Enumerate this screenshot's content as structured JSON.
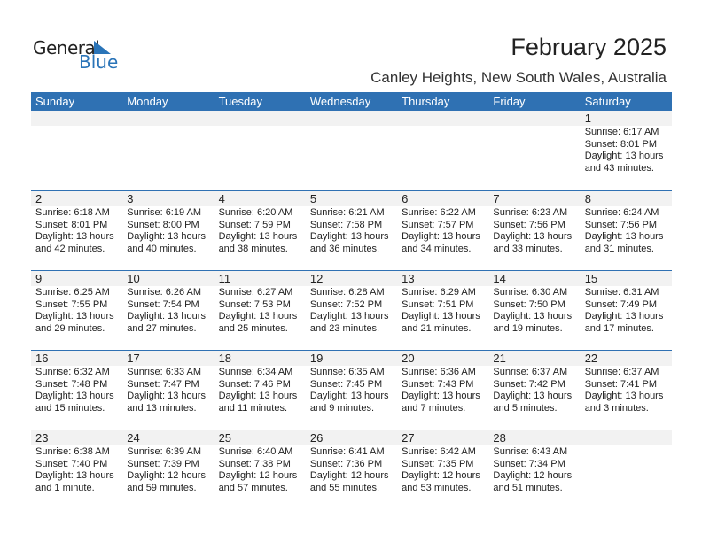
{
  "logo": {
    "word1": "General",
    "word2": "Blue"
  },
  "title": "February 2025",
  "location": "Canley Heights, New South Wales, Australia",
  "colors": {
    "header": "#2f71b3",
    "band": "#f2f2f2",
    "logo_blue": "#2a74b8"
  },
  "days": [
    "Sunday",
    "Monday",
    "Tuesday",
    "Wednesday",
    "Thursday",
    "Friday",
    "Saturday"
  ],
  "weeks": [
    [
      null,
      null,
      null,
      null,
      null,
      null,
      {
        "d": "1",
        "sr": "Sunrise: 6:17 AM",
        "ss": "Sunset: 8:01 PM",
        "dl": "Daylight: 13 hours",
        "m": "and 43 minutes."
      }
    ],
    [
      {
        "d": "2",
        "sr": "Sunrise: 6:18 AM",
        "ss": "Sunset: 8:01 PM",
        "dl": "Daylight: 13 hours",
        "m": "and 42 minutes."
      },
      {
        "d": "3",
        "sr": "Sunrise: 6:19 AM",
        "ss": "Sunset: 8:00 PM",
        "dl": "Daylight: 13 hours",
        "m": "and 40 minutes."
      },
      {
        "d": "4",
        "sr": "Sunrise: 6:20 AM",
        "ss": "Sunset: 7:59 PM",
        "dl": "Daylight: 13 hours",
        "m": "and 38 minutes."
      },
      {
        "d": "5",
        "sr": "Sunrise: 6:21 AM",
        "ss": "Sunset: 7:58 PM",
        "dl": "Daylight: 13 hours",
        "m": "and 36 minutes."
      },
      {
        "d": "6",
        "sr": "Sunrise: 6:22 AM",
        "ss": "Sunset: 7:57 PM",
        "dl": "Daylight: 13 hours",
        "m": "and 34 minutes."
      },
      {
        "d": "7",
        "sr": "Sunrise: 6:23 AM",
        "ss": "Sunset: 7:56 PM",
        "dl": "Daylight: 13 hours",
        "m": "and 33 minutes."
      },
      {
        "d": "8",
        "sr": "Sunrise: 6:24 AM",
        "ss": "Sunset: 7:56 PM",
        "dl": "Daylight: 13 hours",
        "m": "and 31 minutes."
      }
    ],
    [
      {
        "d": "9",
        "sr": "Sunrise: 6:25 AM",
        "ss": "Sunset: 7:55 PM",
        "dl": "Daylight: 13 hours",
        "m": "and 29 minutes."
      },
      {
        "d": "10",
        "sr": "Sunrise: 6:26 AM",
        "ss": "Sunset: 7:54 PM",
        "dl": "Daylight: 13 hours",
        "m": "and 27 minutes."
      },
      {
        "d": "11",
        "sr": "Sunrise: 6:27 AM",
        "ss": "Sunset: 7:53 PM",
        "dl": "Daylight: 13 hours",
        "m": "and 25 minutes."
      },
      {
        "d": "12",
        "sr": "Sunrise: 6:28 AM",
        "ss": "Sunset: 7:52 PM",
        "dl": "Daylight: 13 hours",
        "m": "and 23 minutes."
      },
      {
        "d": "13",
        "sr": "Sunrise: 6:29 AM",
        "ss": "Sunset: 7:51 PM",
        "dl": "Daylight: 13 hours",
        "m": "and 21 minutes."
      },
      {
        "d": "14",
        "sr": "Sunrise: 6:30 AM",
        "ss": "Sunset: 7:50 PM",
        "dl": "Daylight: 13 hours",
        "m": "and 19 minutes."
      },
      {
        "d": "15",
        "sr": "Sunrise: 6:31 AM",
        "ss": "Sunset: 7:49 PM",
        "dl": "Daylight: 13 hours",
        "m": "and 17 minutes."
      }
    ],
    [
      {
        "d": "16",
        "sr": "Sunrise: 6:32 AM",
        "ss": "Sunset: 7:48 PM",
        "dl": "Daylight: 13 hours",
        "m": "and 15 minutes."
      },
      {
        "d": "17",
        "sr": "Sunrise: 6:33 AM",
        "ss": "Sunset: 7:47 PM",
        "dl": "Daylight: 13 hours",
        "m": "and 13 minutes."
      },
      {
        "d": "18",
        "sr": "Sunrise: 6:34 AM",
        "ss": "Sunset: 7:46 PM",
        "dl": "Daylight: 13 hours",
        "m": "and 11 minutes."
      },
      {
        "d": "19",
        "sr": "Sunrise: 6:35 AM",
        "ss": "Sunset: 7:45 PM",
        "dl": "Daylight: 13 hours",
        "m": "and 9 minutes."
      },
      {
        "d": "20",
        "sr": "Sunrise: 6:36 AM",
        "ss": "Sunset: 7:43 PM",
        "dl": "Daylight: 13 hours",
        "m": "and 7 minutes."
      },
      {
        "d": "21",
        "sr": "Sunrise: 6:37 AM",
        "ss": "Sunset: 7:42 PM",
        "dl": "Daylight: 13 hours",
        "m": "and 5 minutes."
      },
      {
        "d": "22",
        "sr": "Sunrise: 6:37 AM",
        "ss": "Sunset: 7:41 PM",
        "dl": "Daylight: 13 hours",
        "m": "and 3 minutes."
      }
    ],
    [
      {
        "d": "23",
        "sr": "Sunrise: 6:38 AM",
        "ss": "Sunset: 7:40 PM",
        "dl": "Daylight: 13 hours",
        "m": "and 1 minute."
      },
      {
        "d": "24",
        "sr": "Sunrise: 6:39 AM",
        "ss": "Sunset: 7:39 PM",
        "dl": "Daylight: 12 hours",
        "m": "and 59 minutes."
      },
      {
        "d": "25",
        "sr": "Sunrise: 6:40 AM",
        "ss": "Sunset: 7:38 PM",
        "dl": "Daylight: 12 hours",
        "m": "and 57 minutes."
      },
      {
        "d": "26",
        "sr": "Sunrise: 6:41 AM",
        "ss": "Sunset: 7:36 PM",
        "dl": "Daylight: 12 hours",
        "m": "and 55 minutes."
      },
      {
        "d": "27",
        "sr": "Sunrise: 6:42 AM",
        "ss": "Sunset: 7:35 PM",
        "dl": "Daylight: 12 hours",
        "m": "and 53 minutes."
      },
      {
        "d": "28",
        "sr": "Sunrise: 6:43 AM",
        "ss": "Sunset: 7:34 PM",
        "dl": "Daylight: 12 hours",
        "m": "and 51 minutes."
      },
      null
    ]
  ]
}
